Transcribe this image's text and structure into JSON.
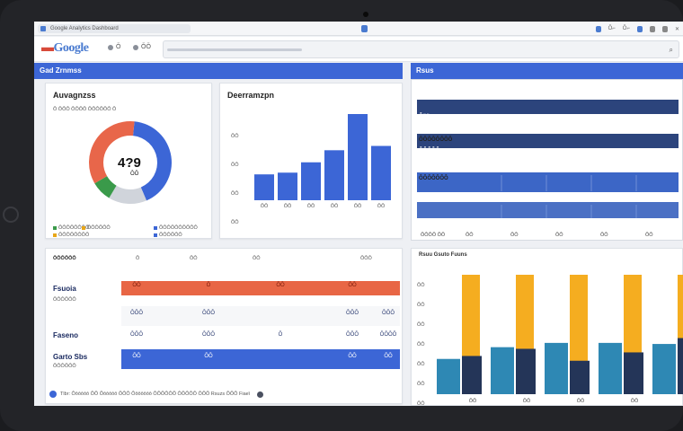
{
  "browser": {
    "tab_title": "Google Analytics Dashboard",
    "right_labels": [
      "Ǒ⌐",
      "Ǒ⌐"
    ]
  },
  "nav": {
    "logo_text": "Google",
    "links": [
      "Ǒ",
      "ǑǑ"
    ]
  },
  "main_header": {
    "title": "Gad Zrnmss"
  },
  "right_header": {
    "title": "Rsus"
  },
  "donut_card": {
    "title": "Auvagnzss",
    "subtitle": "Ǒ ǑǑǑ ǑǑǑǑ ǑǑǑǑǑǑ Ǒ",
    "center_value": "4?9",
    "center_sub": "ǑǑ",
    "legend": [
      {
        "label": "ǑǑǑǑǑǑǑǑ",
        "color": "#3a9a4a"
      },
      {
        "label": "ǑǑǑǑǑǑ",
        "color": "#e8a617"
      },
      {
        "label": "ǑǑǑǑǑǑǑǑǑǑ",
        "color": "#3c66d6"
      },
      {
        "label": "ǑǑǑǑǑǑǑǑ",
        "color": "#e8a617"
      },
      {
        "label": "ǑǑǑǑǑǑ",
        "color": "#3c66d6"
      }
    ],
    "chart_data": {
      "type": "pie",
      "values": [
        42,
        15,
        8,
        35
      ],
      "colors": [
        "#3c66d6",
        "#d0d4db",
        "#3a9a4a",
        "#e8664a"
      ]
    }
  },
  "bar_card": {
    "title": "Deerramzpn",
    "chart_data": {
      "type": "bar",
      "categories": [
        "ǑǑ",
        "ǑǑ",
        "ǑǑ",
        "ǑǑ",
        "ǑǑ",
        "ǑǑ"
      ],
      "values": [
        30,
        32,
        44,
        58,
        100,
        63
      ],
      "ylim": [
        0,
        100
      ],
      "yticks": [
        "ǑǑ",
        "ǑǑ",
        "ǑǑ",
        "ǑǑ"
      ],
      "color": "#3c66d6"
    }
  },
  "right_top": {
    "rows": [
      {
        "label": "Ǒǒǒ",
        "color": "#2c447c",
        "fill": 1.0
      },
      {
        "label": "ǑǑǑǑǑǑǑǑ",
        "color": "none",
        "fill": 0
      },
      {
        "label": "ǑǑǑǑǑ",
        "color": "#2c447c",
        "fill": 1.0
      },
      {
        "label": "ǑǑǑǑǑǑǑ",
        "color": "#3c66c6",
        "fill": 1.0
      },
      {
        "label": "",
        "color": "#4b70c4",
        "fill": 1.0
      }
    ],
    "x_labels": [
      "ǑǑǑǑ ǑǑ",
      "ǑǑ",
      "ǑǑ",
      "ǑǑ",
      "ǑǑ",
      "ǑǑ"
    ]
  },
  "table": {
    "toolbar": [
      "ǑǑǑǑǑǑ",
      "Ǒ",
      "ǑǑ",
      "ǑǑ",
      "ǑǑǑ"
    ],
    "rows": [
      {
        "label": "Fsuoia",
        "sub": "ǑǑǑǑǑǑ",
        "cells": [
          "ǑǑ",
          "Ǒ",
          "ǑǑ",
          "ǑǑ"
        ]
      },
      {
        "label": "",
        "sub": "",
        "cells": [
          "ǑǑǑ",
          "ǑǑǑ",
          "",
          "ǑǑǑ",
          "ǑǑǑ"
        ]
      },
      {
        "label": "Faseno",
        "sub": "",
        "cells": [
          "ǑǑǑ",
          "ǑǑǑ",
          "Ǒ",
          "ǑǑǑ",
          "ǑǑǑǑ"
        ]
      },
      {
        "label": "Garto Sbs",
        "sub": "ǑǑǑǑǑǑ",
        "cells": [
          "ǑǑ",
          "ǑǑ",
          "",
          "ǑǑ",
          "ǑǑ"
        ]
      }
    ],
    "footer": "Tlbr: Ǒǒǒǒǒǒ ǑǑ Ǒǒǒǒǒǒ ǑǑǑ Ǒǒǒǒǒǒǒ ǑǑǑǑǑǑ ǑǑǑǑǑ ǑǑǑ Rsuzs ǑǑǑ Fiaeǐ"
  },
  "grouped_card": {
    "title": "Rsuu Gsuto Fuuns",
    "chart_data": {
      "type": "bar",
      "categories": [
        "ǑǑ",
        "ǑǑ",
        "ǑǑ",
        "ǑǑ",
        "ǑǑ"
      ],
      "series": [
        {
          "values": [
            33,
            44,
            48,
            48,
            47
          ],
          "color": "#2e88b4"
        },
        {
          "values": [
            100,
            100,
            100,
            100,
            100
          ],
          "color": "#f5ad20"
        },
        {
          "values": [
            32,
            38,
            28,
            35,
            47
          ],
          "color": "#243558"
        }
      ],
      "ylim": [
        0,
        100
      ],
      "yticks": [
        "ǑǑ",
        "ǑǑ",
        "ǑǑ",
        "ǑǑ",
        "ǑǑ",
        "ǑǑ",
        "ǑǑ"
      ]
    }
  }
}
